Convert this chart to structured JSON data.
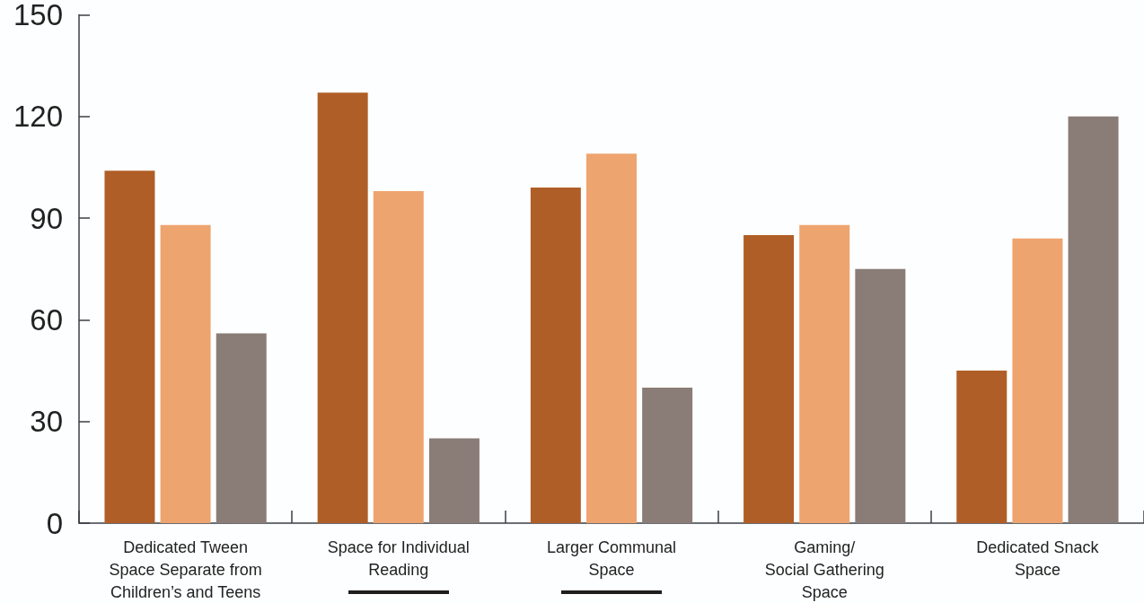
{
  "chart_data": {
    "type": "bar",
    "categories": [
      "Dedicated Tween\nSpace Separate from\nChildren’s and Teens",
      "Space for Individual\nReading",
      "Larger Communal\nSpace",
      "Gaming/\nSocial Gathering\nSpace",
      "Dedicated Snack\nSpace"
    ],
    "series": [
      {
        "color": "#b05e27",
        "values": [
          104,
          127,
          99,
          85,
          45
        ]
      },
      {
        "color": "#eea46f",
        "values": [
          88,
          98,
          109,
          88,
          84
        ]
      },
      {
        "color": "#8a7c76",
        "values": [
          56,
          25,
          40,
          75,
          120
        ]
      }
    ],
    "ylim": [
      0,
      150
    ],
    "yticks": [
      0,
      30,
      60,
      90,
      120,
      150
    ],
    "grid": false
  }
}
